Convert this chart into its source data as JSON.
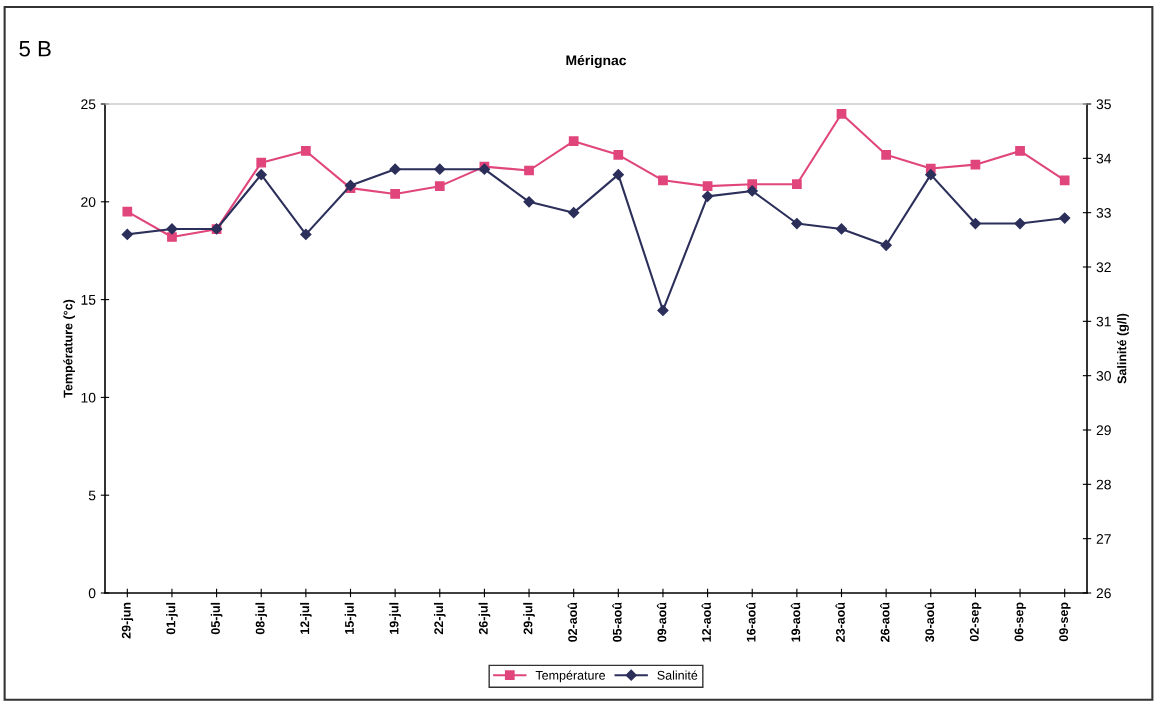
{
  "chart_data": {
    "type": "line",
    "title": "Mérignac",
    "ylabel": "Température (°c)",
    "y2label": "Salinité (g/l)",
    "annotations": [
      "5 B"
    ],
    "categories": [
      "29-jun",
      "01-jul",
      "05-jul",
      "08-jul",
      "12-jul",
      "15-jul",
      "19-jul",
      "22-jul",
      "26-jul",
      "29-jul",
      "02-aoû",
      "05-aoû",
      "09-aoû",
      "12-aoû",
      "16-aoû",
      "19-aoû",
      "23-aoû",
      "26-aoû",
      "30-aoû",
      "02-sep",
      "06-sep",
      "09-sep"
    ],
    "series": [
      {
        "name": "Température",
        "color": "#e0457b",
        "marker": "square",
        "values": [
          19.5,
          18.2,
          18.6,
          22.0,
          22.6,
          20.7,
          20.4,
          20.8,
          21.8,
          21.6,
          23.1,
          22.4,
          21.1,
          20.8,
          20.9,
          20.9,
          24.5,
          22.4,
          21.7,
          21.9,
          22.6,
          21.1
        ]
      },
      {
        "name": "Salinité",
        "color": "#2b2f5a",
        "marker": "diamond",
        "axis": "y2",
        "values": [
          32.6,
          32.7,
          32.7,
          33.7,
          32.6,
          33.5,
          33.8,
          33.8,
          33.8,
          33.2,
          33.0,
          33.7,
          31.2,
          33.3,
          33.4,
          32.8,
          32.7,
          32.4,
          33.7,
          32.8,
          32.8,
          32.9
        ]
      }
    ],
    "ylim": [
      0,
      25
    ],
    "yticks": [
      0,
      5,
      10,
      15,
      20,
      25
    ],
    "y2lim": [
      26,
      35
    ],
    "y2ticks": [
      26,
      27,
      28,
      29,
      30,
      31,
      32,
      33,
      34,
      35
    ],
    "grid": false,
    "legend": "bottom",
    "line_style": "solid"
  }
}
